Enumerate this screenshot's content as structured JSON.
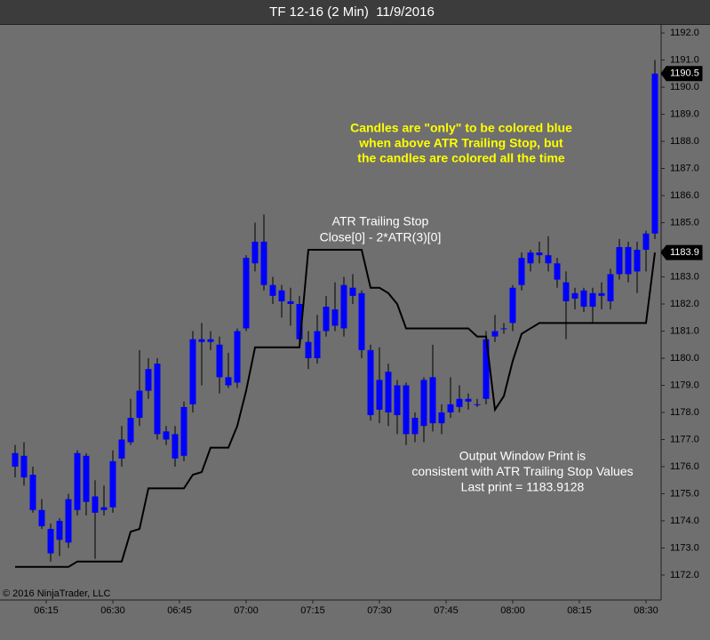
{
  "chart_data": {
    "type": "candlestick",
    "title": "TF 12-16 (2 Min)  11/9/2016",
    "x": [
      368,
      370,
      372,
      374,
      376,
      378,
      380,
      382,
      384,
      386,
      388,
      390,
      392,
      394,
      396,
      398,
      400,
      402,
      404,
      406,
      408,
      410,
      412,
      414,
      416,
      418,
      420,
      422,
      424,
      426,
      428,
      430,
      432,
      434,
      436,
      438,
      440,
      442,
      444,
      446,
      448,
      450,
      452,
      454,
      456,
      458,
      460,
      462,
      464,
      466,
      468,
      470,
      472,
      474,
      476,
      478,
      480,
      482,
      484,
      486,
      488,
      490,
      492,
      494,
      496,
      498,
      500,
      502,
      504,
      506,
      508,
      510,
      512
    ],
    "open": [
      1176.0,
      1176.4,
      1175.7,
      1174.4,
      1173.7,
      1173.3,
      1173.2,
      1174.4,
      1176.4,
      1174.9,
      1174.5,
      1174.5,
      1176.3,
      1176.9,
      1177.8,
      1178.8,
      1179.8,
      1177.3,
      1177.2,
      1176.4,
      1178.3,
      1180.7,
      1180.6,
      1180.5,
      1179.3,
      1179.1,
      1181.1,
      1183.5,
      1184.3,
      1182.7,
      1182.5,
      1182.1,
      1182.0,
      1180.6,
      1180.0,
      1181.0,
      1181.8,
      1181.1,
      1182.6,
      1182.4,
      1180.3,
      1179.2,
      1178.0,
      1179.0,
      1179.0,
      1177.2,
      1177.5,
      1179.3,
      1177.6,
      1178.0,
      1178.2,
      1178.5,
      1178.3,
      1178.5,
      1180.8,
      1181.1,
      1181.3,
      1182.7,
      1183.5,
      1183.8,
      1183.8,
      1183.5,
      1182.8,
      1182.2,
      1182.5,
      1181.9,
      1182.4,
      1182.1,
      1183.1,
      1184.1,
      1183.2,
      1184.0,
      1184.6
    ],
    "high": [
      1176.8,
      1176.9,
      1176.0,
      1174.8,
      1173.9,
      1174.1,
      1175.0,
      1176.6,
      1176.5,
      1175.5,
      1175.3,
      1176.6,
      1177.5,
      1178.5,
      1180.3,
      1180.0,
      1180.0,
      1177.5,
      1177.5,
      1178.4,
      1181.0,
      1181.3,
      1181.0,
      1180.8,
      1180.2,
      1181.1,
      1183.8,
      1185.0,
      1185.3,
      1183.0,
      1182.7,
      1182.6,
      1182.3,
      1181.0,
      1181.6,
      1182.3,
      1182.8,
      1183.0,
      1183.1,
      1182.5,
      1180.5,
      1180.4,
      1179.8,
      1179.2,
      1179.1,
      1178.0,
      1179.3,
      1180.5,
      1178.3,
      1179.3,
      1179.0,
      1178.7,
      1178.5,
      1181.0,
      1181.6,
      1181.3,
      1182.7,
      1183.9,
      1184.0,
      1184.3,
      1184.5,
      1183.7,
      1183.2,
      1182.6,
      1182.6,
      1182.6,
      1182.8,
      1183.3,
      1184.4,
      1184.3,
      1184.3,
      1184.7,
      1191.0
    ],
    "low": [
      1175.6,
      1175.3,
      1174.3,
      1173.7,
      1172.5,
      1172.7,
      1173.0,
      1174.2,
      1174.2,
      1172.6,
      1174.2,
      1174.3,
      1176.0,
      1176.8,
      1177.5,
      1178.5,
      1177.0,
      1176.8,
      1176.0,
      1176.2,
      1178.0,
      1179.0,
      1180.3,
      1178.7,
      1178.9,
      1178.9,
      1181.0,
      1183.2,
      1182.5,
      1182.0,
      1181.5,
      1181.2,
      1180.4,
      1179.6,
      1179.8,
      1180.8,
      1181.0,
      1180.8,
      1182.0,
      1180.0,
      1177.7,
      1177.6,
      1177.5,
      1177.2,
      1176.8,
      1176.9,
      1176.9,
      1177.3,
      1177.2,
      1177.8,
      1178.0,
      1178.1,
      1178.2,
      1178.3,
      1180.6,
      1180.9,
      1181.0,
      1182.5,
      1183.2,
      1183.5,
      1183.2,
      1182.6,
      1180.7,
      1181.8,
      1181.7,
      1181.3,
      1181.8,
      1181.8,
      1182.9,
      1182.8,
      1182.4,
      1183.2,
      1184.4
    ],
    "close": [
      1176.5,
      1175.6,
      1174.4,
      1173.8,
      1172.8,
      1174.0,
      1174.8,
      1176.5,
      1174.7,
      1174.3,
      1174.4,
      1176.2,
      1177.0,
      1177.8,
      1178.8,
      1179.6,
      1177.2,
      1177.0,
      1176.3,
      1178.2,
      1180.7,
      1180.6,
      1180.7,
      1179.3,
      1179.0,
      1181.0,
      1183.7,
      1184.3,
      1182.7,
      1182.3,
      1182.1,
      1182.0,
      1180.7,
      1180.0,
      1181.0,
      1181.9,
      1181.2,
      1182.7,
      1182.3,
      1180.3,
      1177.9,
      1178.1,
      1179.5,
      1177.9,
      1177.2,
      1177.8,
      1179.2,
      1177.6,
      1178.0,
      1178.3,
      1178.5,
      1178.4,
      1178.3,
      1180.7,
      1181.0,
      1181.1,
      1182.6,
      1183.7,
      1183.9,
      1183.9,
      1183.5,
      1182.9,
      1182.1,
      1182.4,
      1181.9,
      1182.4,
      1182.3,
      1183.1,
      1184.1,
      1183.1,
      1184.0,
      1184.6,
      1190.5
    ],
    "color": "#0000ff",
    "stop": [
      1172.3,
      1172.3,
      1172.3,
      1172.3,
      1172.3,
      1172.3,
      1172.3,
      1172.5,
      1172.5,
      1172.5,
      1172.5,
      1172.5,
      1172.5,
      1173.6,
      1173.7,
      1175.2,
      1175.2,
      1175.2,
      1175.2,
      1175.2,
      1175.7,
      1175.8,
      1176.7,
      1176.7,
      1176.7,
      1177.5,
      1178.8,
      1180.4,
      1180.4,
      1180.4,
      1180.4,
      1180.4,
      1180.4,
      1184.0,
      1184.0,
      1184.0,
      1184.0,
      1184.0,
      1184.0,
      1184.0,
      1182.6,
      1182.6,
      1182.4,
      1182.0,
      1181.1,
      1181.1,
      1181.1,
      1181.1,
      1181.1,
      1181.1,
      1181.1,
      1181.1,
      1180.8,
      1180.8,
      1178.1,
      1178.6,
      1179.9,
      1180.9,
      1181.1,
      1181.3,
      1181.3,
      1181.3,
      1181.3,
      1181.3,
      1181.3,
      1181.3,
      1181.3,
      1181.3,
      1181.3,
      1181.3,
      1181.3,
      1181.3,
      1183.9
    ],
    "stop_color": "#000000",
    "xlim": [
      364.6,
      513.4
    ],
    "ylim": [
      1171.08,
      1192.33
    ],
    "xticks": [
      {
        "value": 375,
        "label": "06:15"
      },
      {
        "value": 390,
        "label": "06:30"
      },
      {
        "value": 405,
        "label": "06:45"
      },
      {
        "value": 420,
        "label": "07:00"
      },
      {
        "value": 435,
        "label": "07:15"
      },
      {
        "value": 450,
        "label": "07:30"
      },
      {
        "value": 465,
        "label": "07:45"
      },
      {
        "value": 480,
        "label": "08:00"
      },
      {
        "value": 495,
        "label": "08:15"
      },
      {
        "value": 510,
        "label": "08:30"
      }
    ],
    "yticks": [
      {
        "value": 1172,
        "label": "1172.0"
      },
      {
        "value": 1173,
        "label": "1173.0"
      },
      {
        "value": 1174,
        "label": "1174.0"
      },
      {
        "value": 1175,
        "label": "1175.0"
      },
      {
        "value": 1176,
        "label": "1176.0"
      },
      {
        "value": 1177,
        "label": "1177.0"
      },
      {
        "value": 1178,
        "label": "1178.0"
      },
      {
        "value": 1179,
        "label": "1179.0"
      },
      {
        "value": 1180,
        "label": "1180.0"
      },
      {
        "value": 1181,
        "label": "1181.0"
      },
      {
        "value": 1182,
        "label": "1182.0"
      },
      {
        "value": 1183,
        "label": "1183.0"
      },
      {
        "value": 1184,
        "label": "1184.0"
      },
      {
        "value": 1185,
        "label": "1185.0"
      },
      {
        "value": 1186,
        "label": "1186.0"
      },
      {
        "value": 1187,
        "label": "1187.0"
      },
      {
        "value": 1188,
        "label": "1188.0"
      },
      {
        "value": 1189,
        "label": "1189.0"
      },
      {
        "value": 1190,
        "label": "1190.0"
      },
      {
        "value": 1191,
        "label": "1191.0"
      },
      {
        "value": 1192,
        "label": "1192.0"
      }
    ],
    "annotations": {
      "note": [
        "Candles are \"only\" to be colored blue",
        "when above ATR Trailing Stop, but",
        "the candles are colored all the time"
      ],
      "stop_label": [
        "ATR Trailing Stop",
        "Close[0] - 2*ATR(3)[0]"
      ],
      "output": [
        "Output Window Print is",
        "consistent with ATR Trailing Stop Values",
        "Last print = 1183.9128"
      ],
      "copyright": "© 2016 NinjaTrader, LLC"
    }
  }
}
